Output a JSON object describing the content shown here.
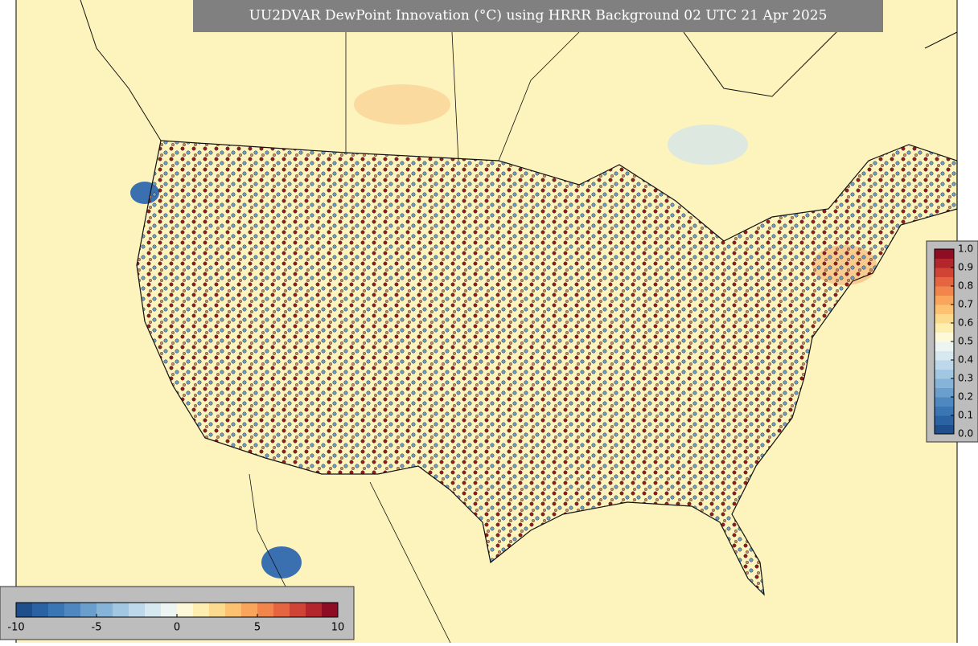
{
  "map": {
    "title": "UU2DVAR DewPoint Innovation (°C) using HRRR Background 02 UTC 21 Apr 2025"
  },
  "colorbar_bottom": {
    "range": [
      -10,
      10
    ],
    "ticks": [
      -10,
      -5,
      0,
      5,
      10
    ],
    "colors": [
      "#1f4e8c",
      "#2a62a4",
      "#3a75b4",
      "#4f88c1",
      "#6a9fcd",
      "#86b4d9",
      "#a2c7e2",
      "#bdd8ea",
      "#d6e8f0",
      "#edf5f2",
      "#fef9d8",
      "#feeeb0",
      "#fddb8e",
      "#fcc272",
      "#f9a55c",
      "#f1854c",
      "#e46540",
      "#cf4434",
      "#b3262b",
      "#8f0c25"
    ]
  },
  "colorbar_right": {
    "range": [
      0,
      1
    ],
    "ticks": [
      {
        "value": 0,
        "label": "0.0"
      },
      0.1,
      0.2,
      0.3,
      0.4,
      0.5,
      0.6,
      0.7,
      0.8,
      0.9,
      {
        "value": 1,
        "label": "1.0"
      }
    ],
    "colors": [
      "#1f4e8c",
      "#2a62a4",
      "#3a75b4",
      "#4f88c1",
      "#6a9fcd",
      "#86b4d9",
      "#a2c7e2",
      "#bdd8ea",
      "#d6e8f0",
      "#edf5f2",
      "#fef9d8",
      "#feeeb0",
      "#fddb8e",
      "#fcc272",
      "#f9a55c",
      "#f1854c",
      "#e46540",
      "#cf4434",
      "#b3262b",
      "#8f0c25"
    ]
  }
}
